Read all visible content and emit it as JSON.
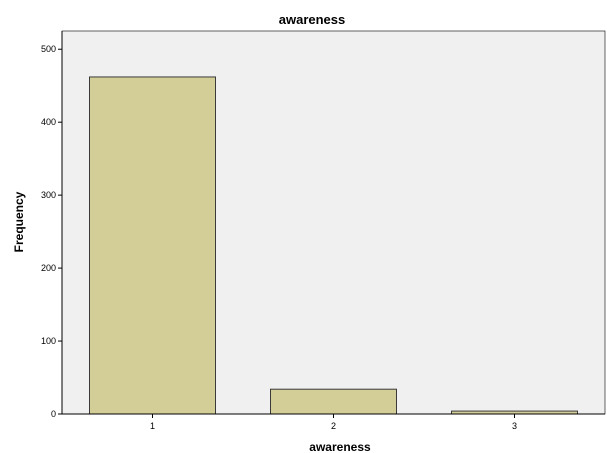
{
  "chart_data": {
    "type": "bar",
    "title": "awareness",
    "xlabel": "awareness",
    "ylabel": "Frequency",
    "categories": [
      "1",
      "2",
      "3"
    ],
    "values": [
      462,
      34,
      4
    ],
    "ylim": [
      0,
      525
    ],
    "yticks": [
      0,
      100,
      200,
      300,
      400,
      500
    ],
    "grid": false,
    "legend": "none",
    "colors": {
      "bar_fill": "#d3ce97",
      "bar_stroke": "#3a3a3a",
      "plot_background": "#f0f0f0",
      "axis": "#000000"
    }
  }
}
